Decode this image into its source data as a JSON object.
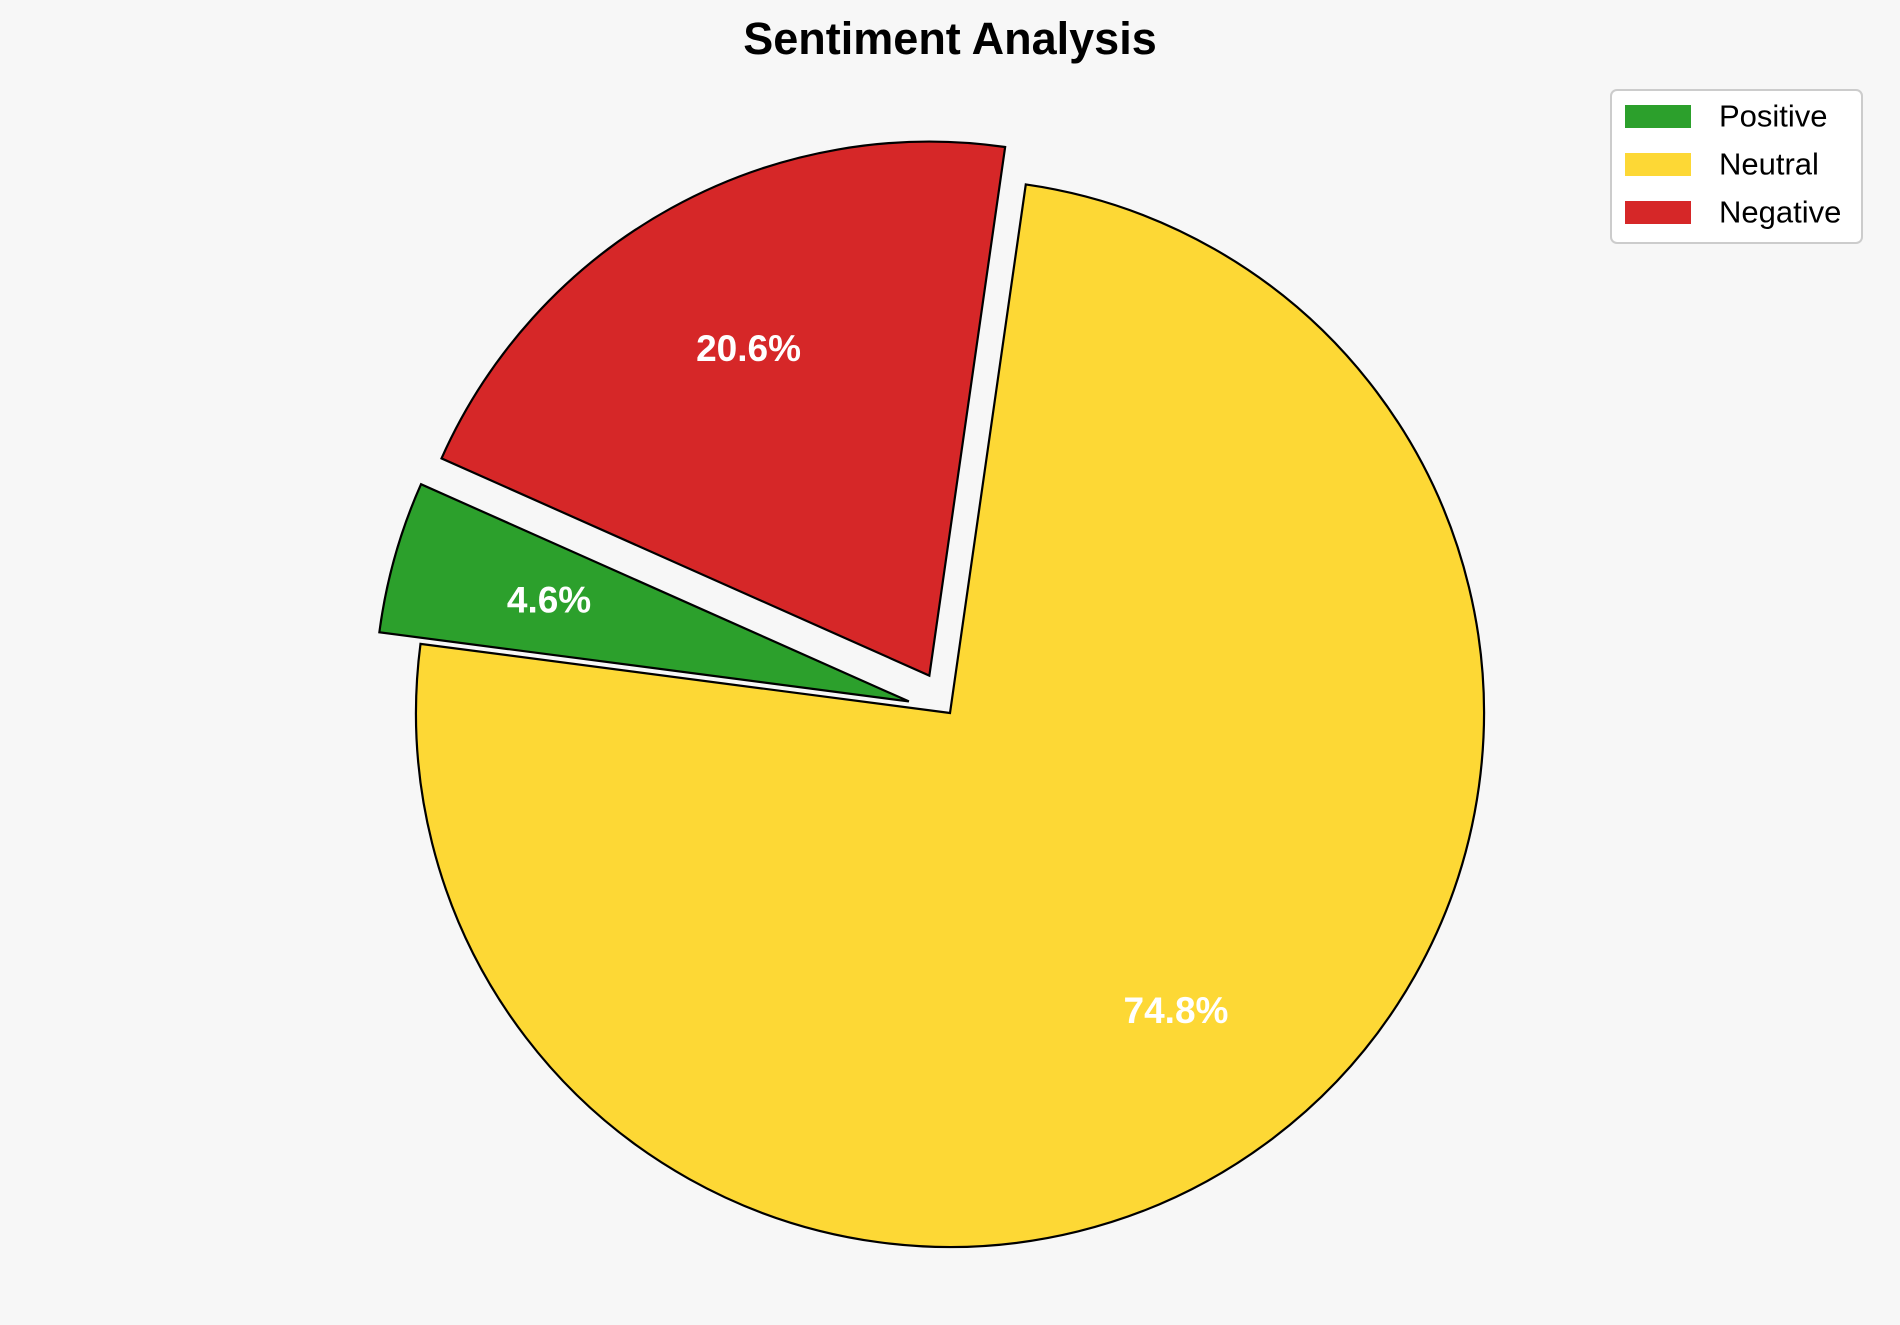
{
  "chart_data": {
    "type": "pie",
    "title": "Sentiment Analysis",
    "slices": [
      {
        "label": "Positive",
        "value": 4.6,
        "display": "4.6%",
        "color": "#2ca02c",
        "exploded": true
      },
      {
        "label": "Neutral",
        "value": 74.8,
        "display": "74.8%",
        "color": "#fdd835",
        "exploded": false
      },
      {
        "label": "Negative",
        "value": 20.6,
        "display": "20.6%",
        "color": "#d62728",
        "exploded": true
      }
    ],
    "start_angle_deg": 156,
    "direction": "counterclockwise",
    "legend": {
      "position": "top-right"
    },
    "edge_color": "#000000",
    "background": "#f7f7f7"
  }
}
